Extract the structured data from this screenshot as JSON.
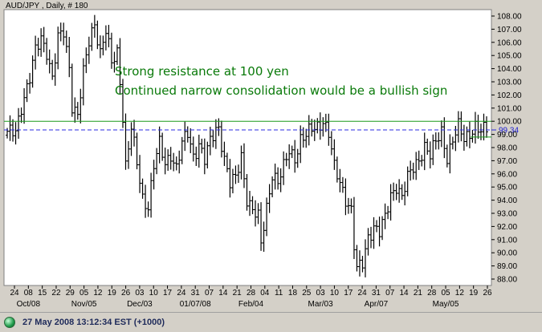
{
  "chart_data": {
    "type": "bar",
    "subtype": "ohlc",
    "title": "AUD/JPY , Daily, # 180",
    "ylim": [
      87.5,
      108.5
    ],
    "y_ticks": [
      "108.00",
      "107.00",
      "106.00",
      "105.00",
      "104.00",
      "103.00",
      "102.00",
      "101.00",
      "100.00",
      "99.00",
      "98.00",
      "97.00",
      "96.00",
      "95.00",
      "94.00",
      "93.00",
      "92.00",
      "91.00",
      "90.00",
      "89.00",
      "88.00"
    ],
    "x_day_labels": [
      "24",
      "08",
      "15",
      "22",
      "29",
      "05",
      "12",
      "19",
      "26",
      "03",
      "10",
      "17",
      "24",
      "31",
      "07",
      "14",
      "21",
      "28",
      "04",
      "11",
      "18",
      "25",
      "03",
      "10",
      "17",
      "24",
      "31",
      "07",
      "14",
      "21",
      "28",
      "05",
      "12",
      "19",
      "26"
    ],
    "x_month_labels": [
      "Oct/08",
      "Nov/05",
      "Dec/03",
      "01/07/08",
      "Feb/04",
      "Mar/03",
      "Apr/07",
      "May/05"
    ],
    "annotations": [
      "Strong resistance at 100 yen",
      "Continued narrow consolidation would be a bullish sign"
    ],
    "resistance_level": 100.0,
    "support_level": 98.8,
    "current_price": 99.34,
    "current_price_label": "99.34",
    "price_path": [
      [
        0,
        99.0
      ],
      [
        3,
        99.3
      ],
      [
        5,
        101.2
      ],
      [
        8,
        103.2
      ],
      [
        10,
        105.3
      ],
      [
        12,
        106.4
      ],
      [
        14,
        105.4
      ],
      [
        16,
        103.2
      ],
      [
        18,
        106.2
      ],
      [
        20,
        106.8
      ],
      [
        22,
        104.2
      ],
      [
        23,
        101.3
      ],
      [
        25,
        100.4
      ],
      [
        27,
        103.6
      ],
      [
        29,
        106.1
      ],
      [
        31,
        107.6
      ],
      [
        33,
        105.2
      ],
      [
        35,
        106.8
      ],
      [
        37,
        104.4
      ],
      [
        39,
        105.3
      ],
      [
        40,
        103.2
      ],
      [
        41,
        100.4
      ],
      [
        42,
        96.6
      ],
      [
        44,
        99.4
      ],
      [
        46,
        96.8
      ],
      [
        48,
        94.2
      ],
      [
        50,
        93.6
      ],
      [
        52,
        96.6
      ],
      [
        54,
        98.2
      ],
      [
        56,
        96.8
      ],
      [
        58,
        97.6
      ],
      [
        60,
        96.4
      ],
      [
        62,
        98.2
      ],
      [
        64,
        99.1
      ],
      [
        66,
        97.4
      ],
      [
        68,
        98.3
      ],
      [
        70,
        97.0
      ],
      [
        72,
        98.4
      ],
      [
        74,
        99.4
      ],
      [
        75,
        99.6
      ],
      [
        77,
        97.2
      ],
      [
        79,
        95.2
      ],
      [
        81,
        95.6
      ],
      [
        83,
        97.4
      ],
      [
        85,
        94.2
      ],
      [
        87,
        93.2
      ],
      [
        89,
        92.6
      ],
      [
        90,
        90.6
      ],
      [
        92,
        93.5
      ],
      [
        94,
        96.1
      ],
      [
        96,
        95.3
      ],
      [
        98,
        96.4
      ],
      [
        100,
        97.8
      ],
      [
        102,
        97.3
      ],
      [
        104,
        98.6
      ],
      [
        106,
        98.8
      ],
      [
        108,
        99.4
      ],
      [
        110,
        99.7
      ],
      [
        112,
        100.1
      ],
      [
        114,
        99.0
      ],
      [
        116,
        96.4
      ],
      [
        118,
        95.4
      ],
      [
        120,
        94.2
      ],
      [
        122,
        93.2
      ],
      [
        123,
        90.5
      ],
      [
        124,
        88.6
      ],
      [
        126,
        89.2
      ],
      [
        128,
        91.3
      ],
      [
        130,
        92.0
      ],
      [
        132,
        91.5
      ],
      [
        134,
        92.6
      ],
      [
        136,
        94.4
      ],
      [
        138,
        95.2
      ],
      [
        140,
        94.2
      ],
      [
        142,
        95.6
      ],
      [
        144,
        96.5
      ],
      [
        146,
        97.2
      ],
      [
        148,
        98.1
      ],
      [
        150,
        97.3
      ],
      [
        152,
        98.4
      ],
      [
        154,
        99.3
      ],
      [
        156,
        97.3
      ],
      [
        158,
        98.5
      ],
      [
        160,
        99.5
      ],
      [
        162,
        98.7
      ],
      [
        164,
        99.2
      ],
      [
        166,
        99.6
      ],
      [
        168,
        99.1
      ],
      [
        170,
        99.4
      ]
    ],
    "grid": false,
    "legend": "none"
  },
  "status_bar": {
    "icon": "green-orb-icon",
    "text": "27 May 2008 13:12:34  EST (+1000)"
  },
  "colors": {
    "background": "#ffffff",
    "frame": "#d4d0c8",
    "bars": "#000000",
    "resistance_line": "#1a9a1a",
    "current_price_line": "#2a2ae0",
    "annotation_text": "#0a7a0a"
  }
}
